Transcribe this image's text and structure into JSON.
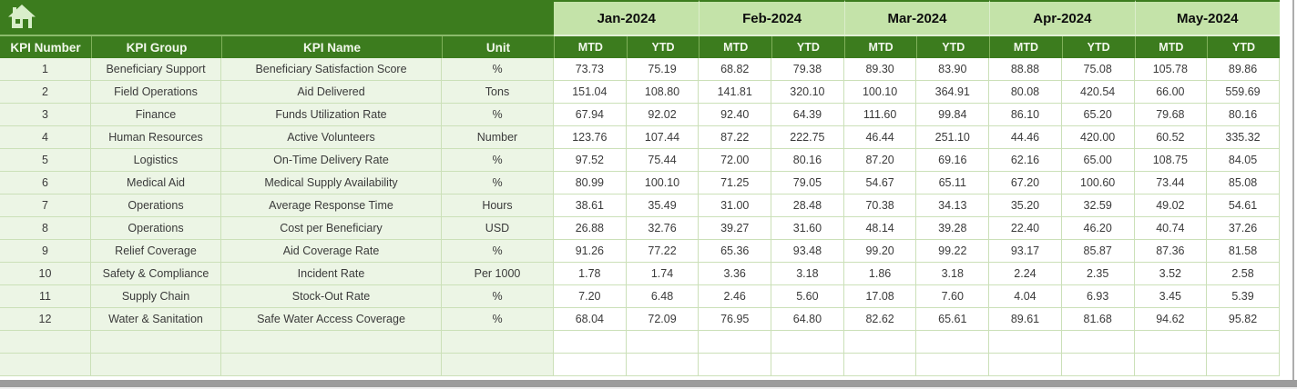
{
  "colors": {
    "dark_green": "#3C7C1E",
    "month_header_green": "#C4E3A9",
    "pale_row_green": "#ECF5E5",
    "gridline_green": "#CBE0B8",
    "header_text": "#F2F8EC",
    "scrollbar_gray": "#9C9C9C"
  },
  "toolbar": {
    "home_icon": "home"
  },
  "table": {
    "months": [
      "Jan-2024",
      "Feb-2024",
      "Mar-2024",
      "Apr-2024",
      "May-2024"
    ],
    "sub_headers": [
      "MTD",
      "YTD"
    ],
    "left_headers": [
      "KPI Number",
      "KPI Group",
      "KPI Name",
      "Unit"
    ],
    "empty_rows": 2,
    "rows": [
      {
        "number": "1",
        "group": "Beneficiary Support",
        "name": "Beneficiary Satisfaction Score",
        "unit": "%",
        "values": [
          "73.73",
          "75.19",
          "68.82",
          "79.38",
          "89.30",
          "83.90",
          "88.88",
          "75.08",
          "105.78",
          "89.86"
        ]
      },
      {
        "number": "2",
        "group": "Field Operations",
        "name": "Aid Delivered",
        "unit": "Tons",
        "values": [
          "151.04",
          "108.80",
          "141.81",
          "320.10",
          "100.10",
          "364.91",
          "80.08",
          "420.54",
          "66.00",
          "559.69"
        ]
      },
      {
        "number": "3",
        "group": "Finance",
        "name": "Funds Utilization Rate",
        "unit": "%",
        "values": [
          "67.94",
          "92.02",
          "92.40",
          "64.39",
          "111.60",
          "99.84",
          "86.10",
          "65.20",
          "79.68",
          "80.16"
        ]
      },
      {
        "number": "4",
        "group": "Human Resources",
        "name": "Active Volunteers",
        "unit": "Number",
        "values": [
          "123.76",
          "107.44",
          "87.22",
          "222.75",
          "46.44",
          "251.10",
          "44.46",
          "420.00",
          "60.52",
          "335.32"
        ]
      },
      {
        "number": "5",
        "group": "Logistics",
        "name": "On-Time Delivery Rate",
        "unit": "%",
        "values": [
          "97.52",
          "75.44",
          "72.00",
          "80.16",
          "87.20",
          "69.16",
          "62.16",
          "65.00",
          "108.75",
          "84.05"
        ]
      },
      {
        "number": "6",
        "group": "Medical Aid",
        "name": "Medical Supply Availability",
        "unit": "%",
        "values": [
          "80.99",
          "100.10",
          "71.25",
          "79.05",
          "54.67",
          "65.11",
          "67.20",
          "100.60",
          "73.44",
          "85.08"
        ]
      },
      {
        "number": "7",
        "group": "Operations",
        "name": "Average Response Time",
        "unit": "Hours",
        "values": [
          "38.61",
          "35.49",
          "31.00",
          "28.48",
          "70.38",
          "34.13",
          "35.20",
          "32.59",
          "49.02",
          "54.61"
        ]
      },
      {
        "number": "8",
        "group": "Operations",
        "name": "Cost per Beneficiary",
        "unit": "USD",
        "values": [
          "26.88",
          "32.76",
          "39.27",
          "31.60",
          "48.14",
          "39.28",
          "22.40",
          "46.20",
          "40.74",
          "37.26"
        ]
      },
      {
        "number": "9",
        "group": "Relief Coverage",
        "name": "Aid Coverage Rate",
        "unit": "%",
        "values": [
          "91.26",
          "77.22",
          "65.36",
          "93.48",
          "99.20",
          "99.22",
          "93.17",
          "85.87",
          "87.36",
          "81.58"
        ]
      },
      {
        "number": "10",
        "group": "Safety & Compliance",
        "name": "Incident Rate",
        "unit": "Per 1000",
        "values": [
          "1.78",
          "1.74",
          "3.36",
          "3.18",
          "1.86",
          "3.18",
          "2.24",
          "2.35",
          "3.52",
          "2.58"
        ]
      },
      {
        "number": "11",
        "group": "Supply Chain",
        "name": "Stock-Out Rate",
        "unit": "%",
        "values": [
          "7.20",
          "6.48",
          "2.46",
          "5.60",
          "17.08",
          "7.60",
          "4.04",
          "6.93",
          "3.45",
          "5.39"
        ]
      },
      {
        "number": "12",
        "group": "Water & Sanitation",
        "name": "Safe Water Access Coverage",
        "unit": "%",
        "values": [
          "68.04",
          "72.09",
          "76.95",
          "64.80",
          "82.62",
          "65.61",
          "89.61",
          "81.68",
          "94.62",
          "95.82"
        ]
      }
    ]
  }
}
